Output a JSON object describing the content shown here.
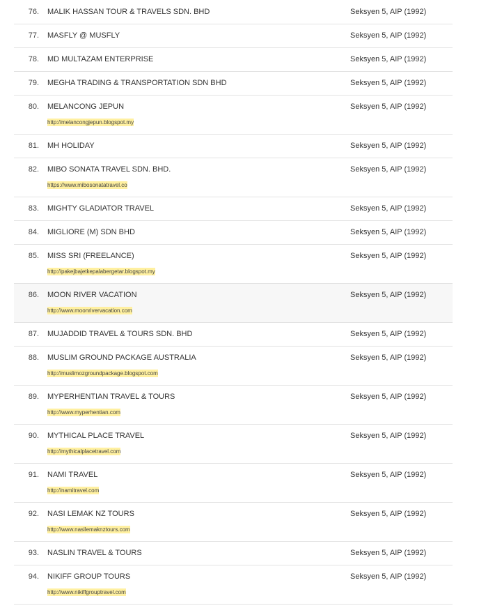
{
  "rows": [
    {
      "num": "76.",
      "name": "MALIK HASSAN TOUR & TRAVELS SDN. BHD",
      "location": "Seksyen 5, AIP (1992)",
      "url": null
    },
    {
      "num": "77.",
      "name": "MASFLY @ MUSFLY",
      "location": "Seksyen 5, AIP (1992)",
      "url": null
    },
    {
      "num": "78.",
      "name": "MD MULTAZAM ENTERPRISE",
      "location": "Seksyen 5, AIP (1992)",
      "url": null
    },
    {
      "num": "79.",
      "name": "MEGHA TRADING & TRANSPORTATION SDN BHD",
      "location": "Seksyen 5, AIP (1992)",
      "url": null
    },
    {
      "num": "80.",
      "name": "MELANCONG JEPUN",
      "location": "Seksyen 5, AIP (1992)",
      "url": "http://melancongjepun.blogspot.my"
    },
    {
      "num": "81.",
      "name": "MH HOLIDAY",
      "location": "Seksyen 5, AIP (1992)",
      "url": null
    },
    {
      "num": "82.",
      "name": "MIBO SONATA TRAVEL SDN. BHD.",
      "location": "Seksyen 5, AIP (1992)",
      "url": "https://www.mibosonatatravel.co"
    },
    {
      "num": "83.",
      "name": "MIGHTY GLADIATOR TRAVEL",
      "location": "Seksyen 5, AIP (1992)",
      "url": null
    },
    {
      "num": "84.",
      "name": "MIGLIORE (M) SDN BHD",
      "location": "Seksyen 5, AIP (1992)",
      "url": null
    },
    {
      "num": "85.",
      "name": "MISS SRI (FREELANCE)",
      "location": "Seksyen 5, AIP (1992)",
      "url": "http://pakejbajetkepalabergetar.blogspot.my"
    },
    {
      "num": "86.",
      "name": "MOON RIVER VACATION",
      "location": "Seksyen 5, AIP (1992)",
      "url": "http://www.moonrivervacation.com",
      "highlighted": true
    },
    {
      "num": "87.",
      "name": "MUJADDID TRAVEL & TOURS SDN. BHD",
      "location": "Seksyen 5, AIP (1992)",
      "url": null
    },
    {
      "num": "88.",
      "name": "MUSLIM GROUND PACKAGE AUSTRALIA",
      "location": "Seksyen 5, AIP (1992)",
      "url": "http://muslimozgroundpackage.blogspot.com"
    },
    {
      "num": "89.",
      "name": "MYPERHENTIAN TRAVEL & TOURS",
      "location": "Seksyen 5, AIP (1992)",
      "url": "http://www.myperhentian.com"
    },
    {
      "num": "90.",
      "name": "MYTHICAL PLACE TRAVEL",
      "location": "Seksyen 5, AIP (1992)",
      "url": "http://mythicalplacetravel.com"
    },
    {
      "num": "91.",
      "name": "NAMI TRAVEL",
      "location": "Seksyen 5, AIP (1992)",
      "url": "http://namitravel.com"
    },
    {
      "num": "92.",
      "name": "NASI LEMAK NZ TOURS",
      "location": "Seksyen 5, AIP (1992)",
      "url": "http://www.nasilemaknztours.com"
    },
    {
      "num": "93.",
      "name": "NASLIN TRAVEL & TOURS",
      "location": "Seksyen 5, AIP (1992)",
      "url": null
    },
    {
      "num": "94.",
      "name": "NIKIFF GROUP TOURS",
      "location": "Seksyen 5, AIP (1992)",
      "url": "http://www.nikiffgrouptravel.com"
    }
  ],
  "colors": {
    "url_highlight": "#fff0a0",
    "row_hover": "#f7f7f7",
    "divider": "#e2e2e2"
  }
}
